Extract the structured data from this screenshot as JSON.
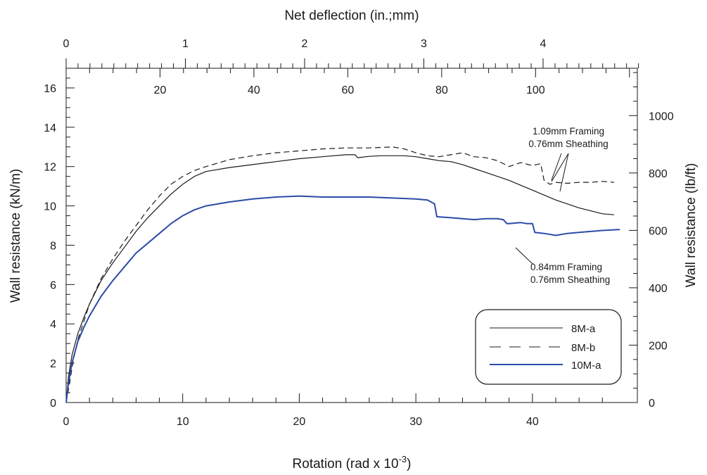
{
  "chart_data": {
    "type": "line",
    "title": "",
    "xlabel_prefix": "Rotation  (rad x 10",
    "xlabel_exponent": "-3",
    "xlabel_suffix": ")",
    "ylabel": "Wall resistance (kN/m)",
    "ylabel_right": "Wall resistance (lb/ft)",
    "xlabel_top": "Net deflection (in.;mm)",
    "xlim": [
      0,
      49
    ],
    "ylim": [
      0,
      17
    ],
    "ylim_right": [
      0,
      1165
    ],
    "x_ticks": [
      "0",
      "10",
      "20",
      "30",
      "40"
    ],
    "y_ticks": [
      "0",
      "2",
      "4",
      "6",
      "8",
      "10",
      "12",
      "14",
      "16"
    ],
    "y_right_ticks": [
      "0",
      "200",
      "400",
      "600",
      "800",
      "1000"
    ],
    "top_inch_ticks": [
      "0",
      "1",
      "2",
      "3",
      "4"
    ],
    "top_mm_ticks": [
      "20",
      "40",
      "60",
      "80",
      "100"
    ],
    "legend_position": "lower-right",
    "series": [
      {
        "name": "8M-a",
        "style": "solid",
        "color": "#1a1a1a",
        "x": [
          0,
          0.2,
          0.5,
          1,
          1.5,
          2,
          3,
          4,
          5,
          6,
          7,
          8,
          9,
          10,
          11,
          12,
          14,
          16,
          18,
          20,
          22,
          24,
          24.8,
          25,
          26,
          27,
          28,
          29,
          30,
          31,
          32,
          33,
          34,
          35,
          36,
          37,
          38,
          39,
          40,
          41,
          42,
          43,
          44,
          45,
          46,
          47
        ],
        "y": [
          0,
          1.3,
          2.4,
          3.5,
          4.3,
          5.0,
          6.2,
          7.1,
          7.9,
          8.7,
          9.4,
          10.0,
          10.6,
          11.1,
          11.5,
          11.75,
          11.95,
          12.1,
          12.25,
          12.4,
          12.5,
          12.6,
          12.6,
          12.45,
          12.52,
          12.55,
          12.55,
          12.55,
          12.5,
          12.4,
          12.3,
          12.25,
          12.1,
          11.9,
          11.7,
          11.5,
          11.3,
          11.05,
          10.8,
          10.55,
          10.3,
          10.1,
          9.9,
          9.75,
          9.6,
          9.55
        ]
      },
      {
        "name": "8M-b",
        "style": "dashed",
        "color": "#1a1a1a",
        "x": [
          0,
          0.3,
          0.6,
          1,
          1.5,
          2,
          3,
          4,
          5,
          6,
          7,
          8,
          9,
          10,
          11,
          12,
          14,
          16,
          18,
          20,
          22,
          24,
          26,
          28,
          29,
          30,
          31,
          32,
          33,
          34,
          35,
          36,
          37,
          38,
          39,
          40,
          40.7,
          41,
          41.5,
          42,
          43,
          44,
          45,
          46,
          47
        ],
        "y": [
          0,
          1.0,
          2.1,
          3.2,
          4.1,
          5.0,
          6.3,
          7.3,
          8.2,
          9.0,
          9.8,
          10.5,
          11.1,
          11.5,
          11.8,
          12.0,
          12.35,
          12.55,
          12.7,
          12.8,
          12.9,
          12.95,
          12.95,
          13.0,
          12.9,
          12.7,
          12.55,
          12.5,
          12.6,
          12.7,
          12.5,
          12.45,
          12.3,
          12.0,
          12.2,
          12.05,
          12.15,
          11.3,
          11.1,
          11.2,
          11.15,
          11.2,
          11.2,
          11.25,
          11.2
        ]
      },
      {
        "name": "10M-a",
        "style": "solid",
        "color": "#2b4ba8",
        "x": [
          0,
          0.2,
          0.5,
          1,
          1.5,
          2,
          3,
          4,
          5,
          6,
          7,
          8,
          9,
          10,
          11,
          12,
          14,
          16,
          18,
          20,
          22,
          24,
          26,
          28,
          30,
          31,
          31.6,
          31.8,
          33,
          34,
          35,
          36,
          37,
          37.5,
          37.8,
          38,
          39,
          39.5,
          40,
          40.2,
          41,
          42,
          43,
          44,
          45,
          46,
          47.5
        ],
        "y": [
          0,
          1.0,
          2.0,
          3.1,
          3.8,
          4.4,
          5.4,
          6.2,
          6.9,
          7.6,
          8.1,
          8.6,
          9.1,
          9.5,
          9.8,
          10.0,
          10.2,
          10.35,
          10.45,
          10.5,
          10.45,
          10.45,
          10.45,
          10.4,
          10.35,
          10.3,
          10.1,
          9.45,
          9.4,
          9.35,
          9.3,
          9.35,
          9.35,
          9.3,
          9.1,
          9.1,
          9.15,
          9.1,
          9.1,
          8.65,
          8.6,
          8.5,
          8.6,
          8.65,
          8.7,
          8.75,
          8.8
        ]
      }
    ],
    "annotations": [
      {
        "lines": [
          "1.09mm Framing",
          "0.76mm Sheathing"
        ]
      },
      {
        "lines": [
          "0.84mm Framing",
          "0.76mm Sheathing"
        ]
      }
    ]
  }
}
